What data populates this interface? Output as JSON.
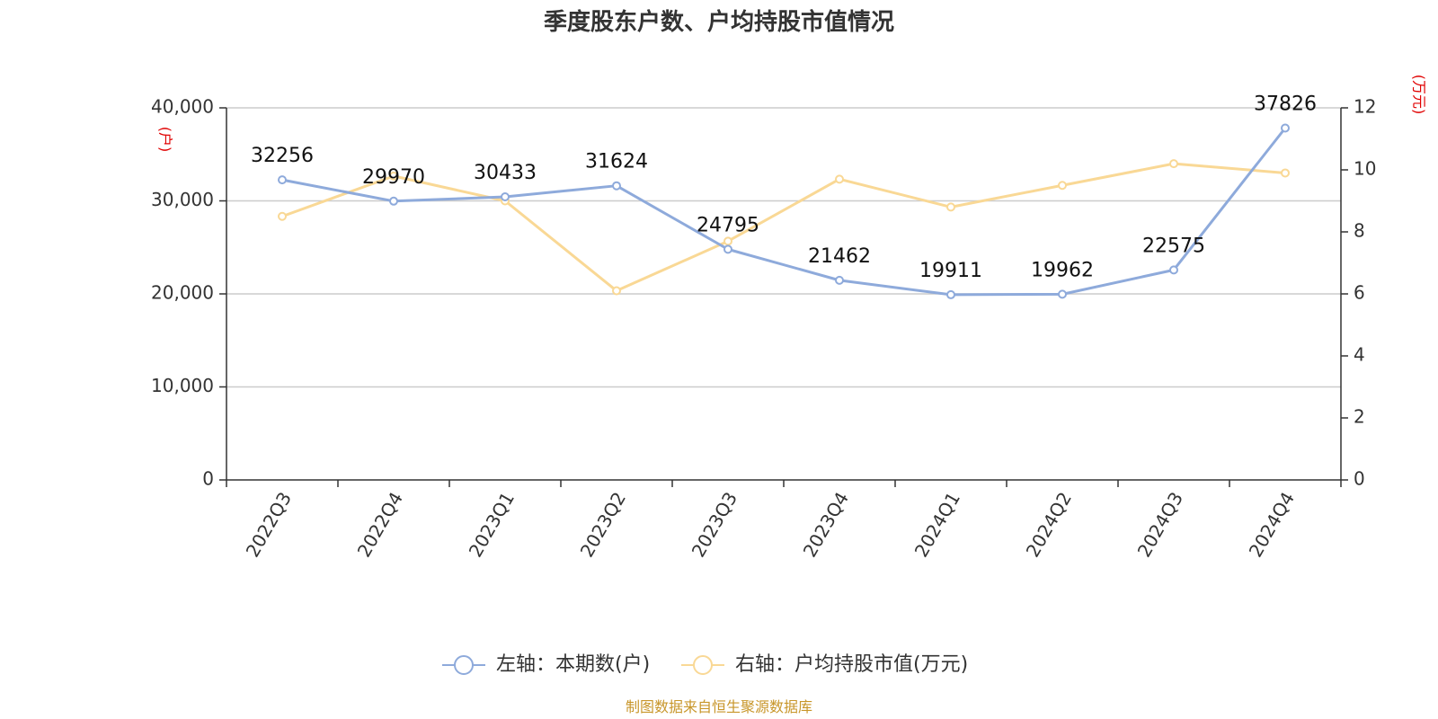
{
  "chart_data": {
    "type": "line",
    "title": "季度股东户数、户均持股市值情况",
    "categories": [
      "2022Q3",
      "2022Q4",
      "2023Q1",
      "2023Q2",
      "2023Q3",
      "2023Q4",
      "2024Q1",
      "2024Q2",
      "2024Q3",
      "2024Q4"
    ],
    "series": [
      {
        "name": "左轴：本期数(户)",
        "axis": "left",
        "color": "#8eaadb",
        "values": [
          32256,
          29970,
          30433,
          31624,
          24795,
          21462,
          19911,
          19962,
          22575,
          37826
        ],
        "labels": [
          "32256",
          "29970",
          "30433",
          "31624",
          "24795",
          "21462",
          "19911",
          "19962",
          "22575",
          "37826"
        ]
      },
      {
        "name": "右轴：户均持股市值(万元)",
        "axis": "right",
        "color": "#f9d895",
        "values": [
          8.5,
          9.8,
          9.0,
          6.1,
          7.7,
          9.7,
          8.8,
          9.5,
          10.2,
          9.9
        ]
      }
    ],
    "left_axis": {
      "unit": "(户)",
      "ylim": [
        0,
        40000
      ],
      "ticks": [
        0,
        10000,
        20000,
        30000,
        40000
      ],
      "tick_labels": [
        "0",
        "10,000",
        "20,000",
        "30,000",
        "40,000"
      ]
    },
    "right_axis": {
      "unit": "(万元)",
      "ylim": [
        0,
        12
      ],
      "ticks": [
        0,
        2,
        4,
        6,
        8,
        10,
        12
      ],
      "tick_labels": [
        "0",
        "2",
        "4",
        "6",
        "8",
        "10",
        "12"
      ]
    },
    "grid": true,
    "legend_position": "bottom"
  },
  "source": "制图数据来自恒生聚源数据库"
}
